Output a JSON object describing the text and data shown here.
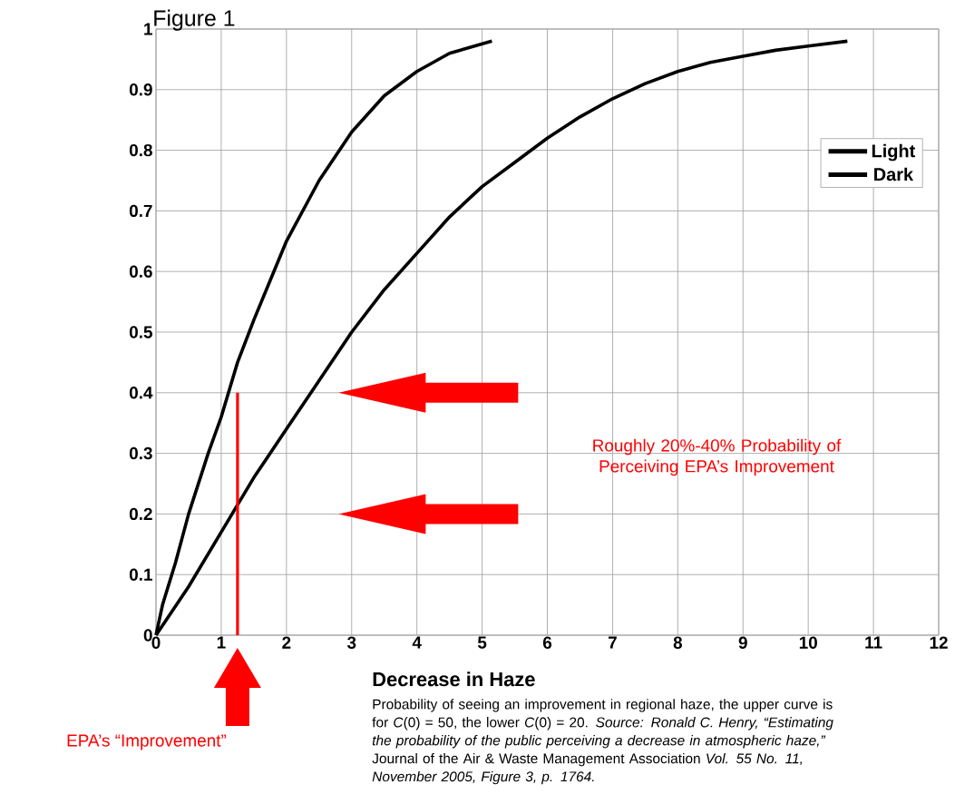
{
  "chart_data": {
    "type": "line",
    "title": "Figure 1",
    "xlabel": "Decrease in Haze",
    "xlim": [
      0,
      12
    ],
    "xticks": [
      0,
      1,
      2,
      3,
      4,
      5,
      6,
      7,
      8,
      9,
      10,
      11,
      12
    ],
    "ylim": [
      0,
      1
    ],
    "yticks": [
      0,
      0.1,
      0.2,
      0.3,
      0.4,
      0.5,
      0.6,
      0.7,
      0.8,
      0.9,
      1
    ],
    "grid": true,
    "legend": "top right",
    "line_style": "solid",
    "series": [
      {
        "name": "Light",
        "color": "#000000",
        "x": [
          0,
          0.1,
          0.3,
          0.5,
          0.8,
          1,
          1.25,
          1.5,
          2,
          2.5,
          3,
          3.5,
          4,
          4.5,
          5.15
        ],
        "values": [
          0,
          0.05,
          0.12,
          0.2,
          0.3,
          0.36,
          0.45,
          0.52,
          0.65,
          0.75,
          0.83,
          0.89,
          0.93,
          0.96,
          0.98
        ]
      },
      {
        "name": "Dark",
        "color": "#000000",
        "x": [
          0,
          0.5,
          1,
          1.5,
          2,
          2.5,
          3,
          3.5,
          4,
          4.5,
          5,
          5.5,
          6,
          6.5,
          7,
          7.5,
          8,
          8.5,
          9,
          9.5,
          10,
          10.6
        ],
        "values": [
          0,
          0.08,
          0.17,
          0.26,
          0.34,
          0.42,
          0.5,
          0.57,
          0.63,
          0.69,
          0.74,
          0.78,
          0.82,
          0.855,
          0.885,
          0.91,
          0.93,
          0.945,
          0.955,
          0.965,
          0.972,
          0.98
        ]
      },
      {
        "color": "#ff0000",
        "x": [
          1.25,
          1.25
        ],
        "values": [
          0,
          0.4
        ]
      }
    ],
    "annotations": [
      "Roughly 20%-40% Probability of Perceiving EPA’s Improvement",
      "EPA’s “Improvement”",
      "Probability of seeing an improvement in regional haze, the upper curve is for *C*(0) = 50, the lower *C*(0) = 20. *Source: Ronald C. Henry, “Estimating the probability of the public perceiving a decrease in atmospheric haze,”* Journal of the Air & Waste Management Association *Vol. 55 No. 11, November 2005, Figure 3, p. 1764.*"
    ]
  }
}
